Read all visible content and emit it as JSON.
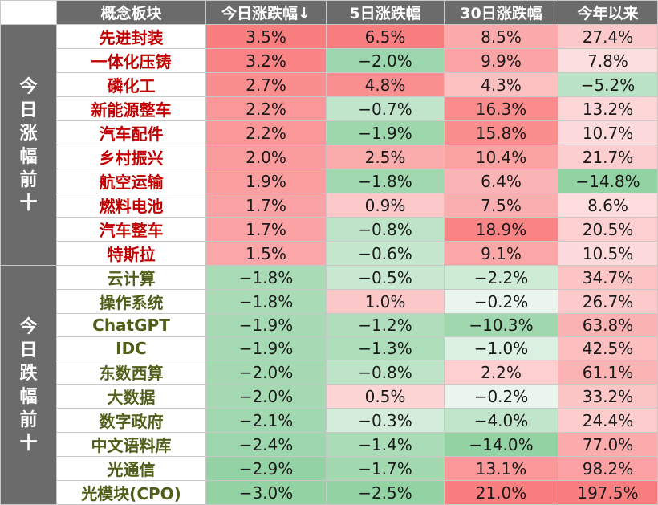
{
  "header": {
    "corner": "",
    "concept": "概念板块",
    "today": "今日涨跌幅↓",
    "five_day": "5日涨跌幅",
    "thirty_day": "30日涨跌幅",
    "ytd": "今年以来"
  },
  "groups": [
    {
      "label": "今日涨幅前十",
      "kind": "up",
      "rows": [
        {
          "name": "先进封装",
          "today": "3.5%",
          "d5": "6.5%",
          "d30": "8.5%",
          "ytd": "27.4%"
        },
        {
          "name": "一体化压铸",
          "today": "3.2%",
          "d5": "−2.0%",
          "d30": "9.9%",
          "ytd": "7.8%"
        },
        {
          "name": "磷化工",
          "today": "2.7%",
          "d5": "4.8%",
          "d30": "4.3%",
          "ytd": "−5.2%"
        },
        {
          "name": "新能源整车",
          "today": "2.2%",
          "d5": "−0.7%",
          "d30": "16.3%",
          "ytd": "13.2%"
        },
        {
          "name": "汽车配件",
          "today": "2.2%",
          "d5": "−1.9%",
          "d30": "15.8%",
          "ytd": "10.7%"
        },
        {
          "name": "乡村振兴",
          "today": "2.0%",
          "d5": "2.5%",
          "d30": "10.4%",
          "ytd": "21.7%"
        },
        {
          "name": "航空运输",
          "today": "1.9%",
          "d5": "−1.8%",
          "d30": "6.4%",
          "ytd": "−14.8%"
        },
        {
          "name": "燃料电池",
          "today": "1.7%",
          "d5": "0.9%",
          "d30": "7.5%",
          "ytd": "8.6%"
        },
        {
          "name": "汽车整车",
          "today": "1.7%",
          "d5": "−0.8%",
          "d30": "18.9%",
          "ytd": "20.5%"
        },
        {
          "name": "特斯拉",
          "today": "1.5%",
          "d5": "−0.6%",
          "d30": "9.1%",
          "ytd": "10.5%"
        }
      ]
    },
    {
      "label": "今日跌幅前十",
      "kind": "down",
      "rows": [
        {
          "name": "云计算",
          "today": "−1.8%",
          "d5": "−0.5%",
          "d30": "−2.2%",
          "ytd": "34.7%"
        },
        {
          "name": "操作系统",
          "today": "−1.8%",
          "d5": "1.0%",
          "d30": "−0.2%",
          "ytd": "26.7%"
        },
        {
          "name": "ChatGPT",
          "today": "−1.9%",
          "d5": "−1.2%",
          "d30": "−10.3%",
          "ytd": "63.8%"
        },
        {
          "name": "IDC",
          "today": "−1.9%",
          "d5": "−1.3%",
          "d30": "−1.0%",
          "ytd": "42.5%"
        },
        {
          "name": "东数西算",
          "today": "−2.0%",
          "d5": "−0.8%",
          "d30": "2.2%",
          "ytd": "61.1%"
        },
        {
          "name": "大数据",
          "today": "−2.0%",
          "d5": "0.5%",
          "d30": "−0.2%",
          "ytd": "33.2%"
        },
        {
          "name": "数字政府",
          "today": "−2.1%",
          "d5": "−0.3%",
          "d30": "−4.0%",
          "ytd": "24.4%"
        },
        {
          "name": "中文语料库",
          "today": "−2.4%",
          "d5": "−1.4%",
          "d30": "−14.0%",
          "ytd": "77.0%"
        },
        {
          "name": "光通信",
          "today": "−2.9%",
          "d5": "−1.7%",
          "d30": "13.1%",
          "ytd": "98.2%"
        },
        {
          "name": "光模块(CPO)",
          "today": "−3.0%",
          "d5": "−2.5%",
          "d30": "21.0%",
          "ytd": "197.5%"
        }
      ]
    }
  ],
  "colors": {
    "header_bg": "#6b6b6b",
    "header_text": "#ffffff",
    "up_name_text": "#c00000",
    "down_name_text": "#4f5f1a",
    "positive_scale_max": "#f8696b",
    "negative_scale_max": "#63be7b",
    "neutral": "#ffffff"
  }
}
